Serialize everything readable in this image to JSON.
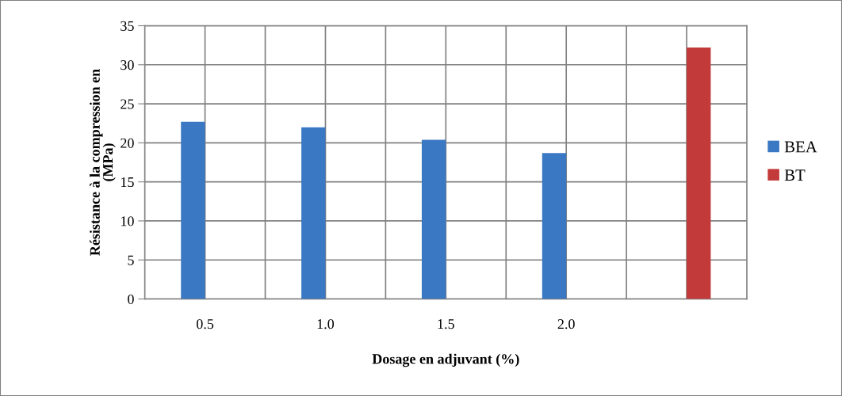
{
  "chart_data": {
    "type": "bar",
    "xlabel": "Dosage en adjuvant (%)",
    "ylabel": "Résistance à la compression en\n(MPa)",
    "categories": [
      "0.5",
      "1.0",
      "1.5",
      "2.0",
      null
    ],
    "series": [
      {
        "name": "BEA",
        "color": "#3b78c4",
        "values": [
          22.7,
          22.0,
          20.4,
          18.7,
          null
        ]
      },
      {
        "name": "BT",
        "color": "#c23a3a",
        "values": [
          null,
          null,
          null,
          null,
          32.2
        ]
      }
    ],
    "ylim": [
      0,
      35
    ],
    "yticks": [
      0,
      5,
      10,
      15,
      20,
      25,
      30,
      35
    ],
    "grid": true,
    "legend": "right"
  }
}
